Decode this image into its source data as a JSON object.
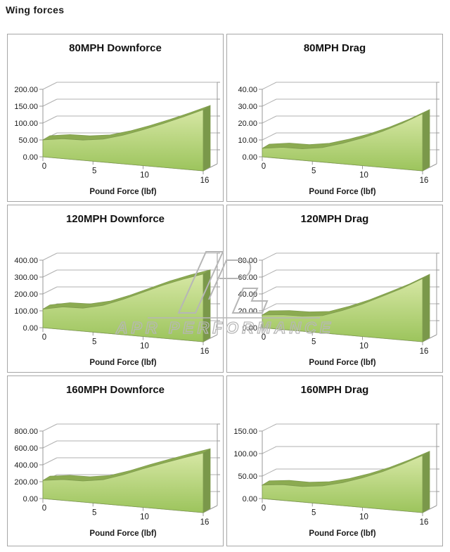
{
  "page": {
    "title": "Wing forces"
  },
  "watermark": {
    "text": "APR PERFORMANCE",
    "color": "#b6b6b6"
  },
  "palette": {
    "area_top": "#d6e7a4",
    "area_bottom": "#9cc45c",
    "ribbon": "#8cab51",
    "side": "#7a984a",
    "outline": "#7f9c4e",
    "grid": "#b0b0b0",
    "axis": "#999999",
    "text": "#1a1a1a"
  },
  "chart_data": [
    {
      "id": "df80",
      "type": "area",
      "title": "80MPH Downforce",
      "xlabel": "Pound Force (lbf)",
      "xticks": [
        "0",
        "5",
        "10",
        "16"
      ],
      "xtick_values": [
        0,
        5,
        10,
        16
      ],
      "xlim": [
        0,
        16
      ],
      "yticks": [
        "0.00",
        "50.00",
        "100.00",
        "150.00",
        "200.00"
      ],
      "ymax": 200,
      "x": [
        0,
        2,
        4,
        6,
        8,
        10,
        12,
        14,
        16
      ],
      "values": [
        50,
        57,
        57,
        63,
        77,
        94,
        112,
        131,
        150
      ],
      "grid": true,
      "legend": "none"
    },
    {
      "id": "dr80",
      "type": "area",
      "title": "80MPH Drag",
      "xlabel": "Pound Force (lbf)",
      "xticks": [
        "0",
        "5",
        "10",
        "16"
      ],
      "xtick_values": [
        0,
        5,
        10,
        16
      ],
      "xlim": [
        0,
        16
      ],
      "yticks": [
        "0.00",
        "10.00",
        "20.00",
        "30.00",
        "40.00"
      ],
      "ymax": 40,
      "x": [
        0,
        2,
        4,
        6,
        8,
        10,
        12,
        14,
        16
      ],
      "values": [
        5,
        6.5,
        6.5,
        8,
        11,
        14.5,
        18.5,
        23,
        28
      ],
      "grid": true,
      "legend": "none"
    },
    {
      "id": "df120",
      "type": "area",
      "title": "120MPH Downforce",
      "xlabel": "Pound Force (lbf)",
      "xticks": [
        "0",
        "5",
        "10",
        "16"
      ],
      "xtick_values": [
        0,
        5,
        10,
        16
      ],
      "xlim": [
        0,
        16
      ],
      "yticks": [
        "0.00",
        "100.00",
        "200.00",
        "300.00",
        "400.00"
      ],
      "ymax": 400,
      "x": [
        0,
        2,
        4,
        6,
        8,
        10,
        12,
        14,
        16
      ],
      "values": [
        110,
        130,
        130,
        152,
        190,
        232,
        272,
        305,
        332
      ],
      "grid": true,
      "legend": "none"
    },
    {
      "id": "dr120",
      "type": "area",
      "title": "120MPH Drag",
      "xlabel": "Pound Force (lbf)",
      "xticks": [
        "0",
        "5",
        "10",
        "16"
      ],
      "xtick_values": [
        0,
        5,
        10,
        16
      ],
      "xlim": [
        0,
        16
      ],
      "yticks": [
        "0.00",
        "20.00",
        "40.00",
        "60.00",
        "80.00"
      ],
      "ymax": 80,
      "x": [
        0,
        2,
        4,
        6,
        8,
        10,
        12,
        14,
        16
      ],
      "values": [
        15,
        17,
        17,
        19,
        26,
        34,
        43,
        52,
        62
      ],
      "grid": true,
      "legend": "none"
    },
    {
      "id": "df160",
      "type": "area",
      "title": "160MPH Downforce",
      "xlabel": "Pound Force (lbf)",
      "xticks": [
        "0",
        "5",
        "10",
        "16"
      ],
      "xtick_values": [
        0,
        5,
        10,
        16
      ],
      "xlim": [
        0,
        16
      ],
      "yticks": [
        "0.00",
        "200.00",
        "400.00",
        "600.00",
        "800.00"
      ],
      "ymax": 800,
      "x": [
        0,
        2,
        4,
        6,
        8,
        10,
        12,
        14,
        16
      ],
      "values": [
        215,
        240,
        238,
        265,
        330,
        405,
        470,
        530,
        585
      ],
      "grid": true,
      "legend": "none"
    },
    {
      "id": "dr160",
      "type": "area",
      "title": "160MPH Drag",
      "xlabel": "Pound Force (lbf)",
      "xticks": [
        "0",
        "5",
        "10",
        "16"
      ],
      "xtick_values": [
        0,
        5,
        10,
        16
      ],
      "xlim": [
        0,
        16
      ],
      "yticks": [
        "0.00",
        "50.00",
        "100.00",
        "150.00"
      ],
      "ymax": 150,
      "x": [
        0,
        2,
        4,
        6,
        8,
        10,
        12,
        14,
        16
      ],
      "values": [
        30,
        34,
        33,
        37,
        46,
        58,
        72,
        88,
        105
      ],
      "grid": true,
      "legend": "none"
    }
  ]
}
